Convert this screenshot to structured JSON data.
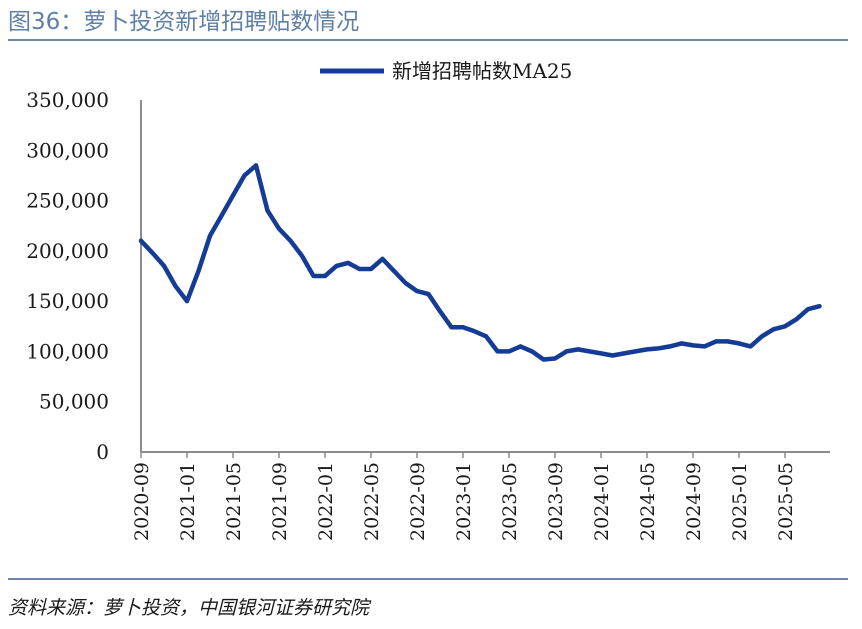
{
  "figure": {
    "title": "图36：萝卜投资新增招聘贴数情况",
    "source": "资料来源：萝卜投资，中国银河证券研究院"
  },
  "colors": {
    "line": "#143c96",
    "accent": "#6f86a8",
    "axis": "#8c8c8c"
  },
  "chart_data": {
    "type": "line",
    "title": "",
    "xlabel": "",
    "ylabel": "",
    "ylim": [
      0,
      350000
    ],
    "grid": false,
    "legend_position": "top-center",
    "y_ticks": [
      "350,000",
      "300,000",
      "250,000",
      "200,000",
      "150,000",
      "100,000",
      "50,000",
      "0"
    ],
    "x_ticks": [
      "2020-09",
      "2021-01",
      "2021-05",
      "2021-09",
      "2022-01",
      "2022-05",
      "2022-09",
      "2023-01",
      "2023-05",
      "2023-09",
      "2024-01",
      "2024-05",
      "2024-09",
      "2025-01",
      "2025-05"
    ],
    "series": [
      {
        "name": "新增招聘帖数MA25",
        "x": [
          "2020-09",
          "2020-10",
          "2020-11",
          "2020-12",
          "2021-01",
          "2021-02",
          "2021-03",
          "2021-04",
          "2021-05",
          "2021-06",
          "2021-07",
          "2021-08",
          "2021-09",
          "2021-10",
          "2021-11",
          "2021-12",
          "2022-01",
          "2022-02",
          "2022-03",
          "2022-04",
          "2022-05",
          "2022-06",
          "2022-07",
          "2022-08",
          "2022-09",
          "2022-10",
          "2022-11",
          "2022-12",
          "2023-01",
          "2023-02",
          "2023-03",
          "2023-04",
          "2023-05",
          "2023-06",
          "2023-07",
          "2023-08",
          "2023-09",
          "2023-10",
          "2023-11",
          "2023-12",
          "2024-01",
          "2024-02",
          "2024-03",
          "2024-04",
          "2024-05",
          "2024-06",
          "2024-07",
          "2024-08",
          "2024-09",
          "2024-10",
          "2024-11",
          "2024-12",
          "2025-01",
          "2025-02",
          "2025-03",
          "2025-04",
          "2025-05",
          "2025-06",
          "2025-07",
          "2025-08"
        ],
        "values": [
          210000,
          198000,
          185000,
          165000,
          150000,
          180000,
          215000,
          235000,
          255000,
          275000,
          285000,
          240000,
          222000,
          210000,
          195000,
          175000,
          175000,
          185000,
          188000,
          182000,
          182000,
          192000,
          180000,
          168000,
          160000,
          157000,
          140000,
          124000,
          124000,
          120000,
          115000,
          100000,
          100000,
          105000,
          100000,
          92000,
          93000,
          100000,
          102000,
          100000,
          98000,
          96000,
          98000,
          100000,
          102000,
          103000,
          105000,
          108000,
          106000,
          105000,
          110000,
          110000,
          108000,
          105000,
          115000,
          122000,
          125000,
          132000,
          142000,
          145000
        ]
      }
    ]
  }
}
